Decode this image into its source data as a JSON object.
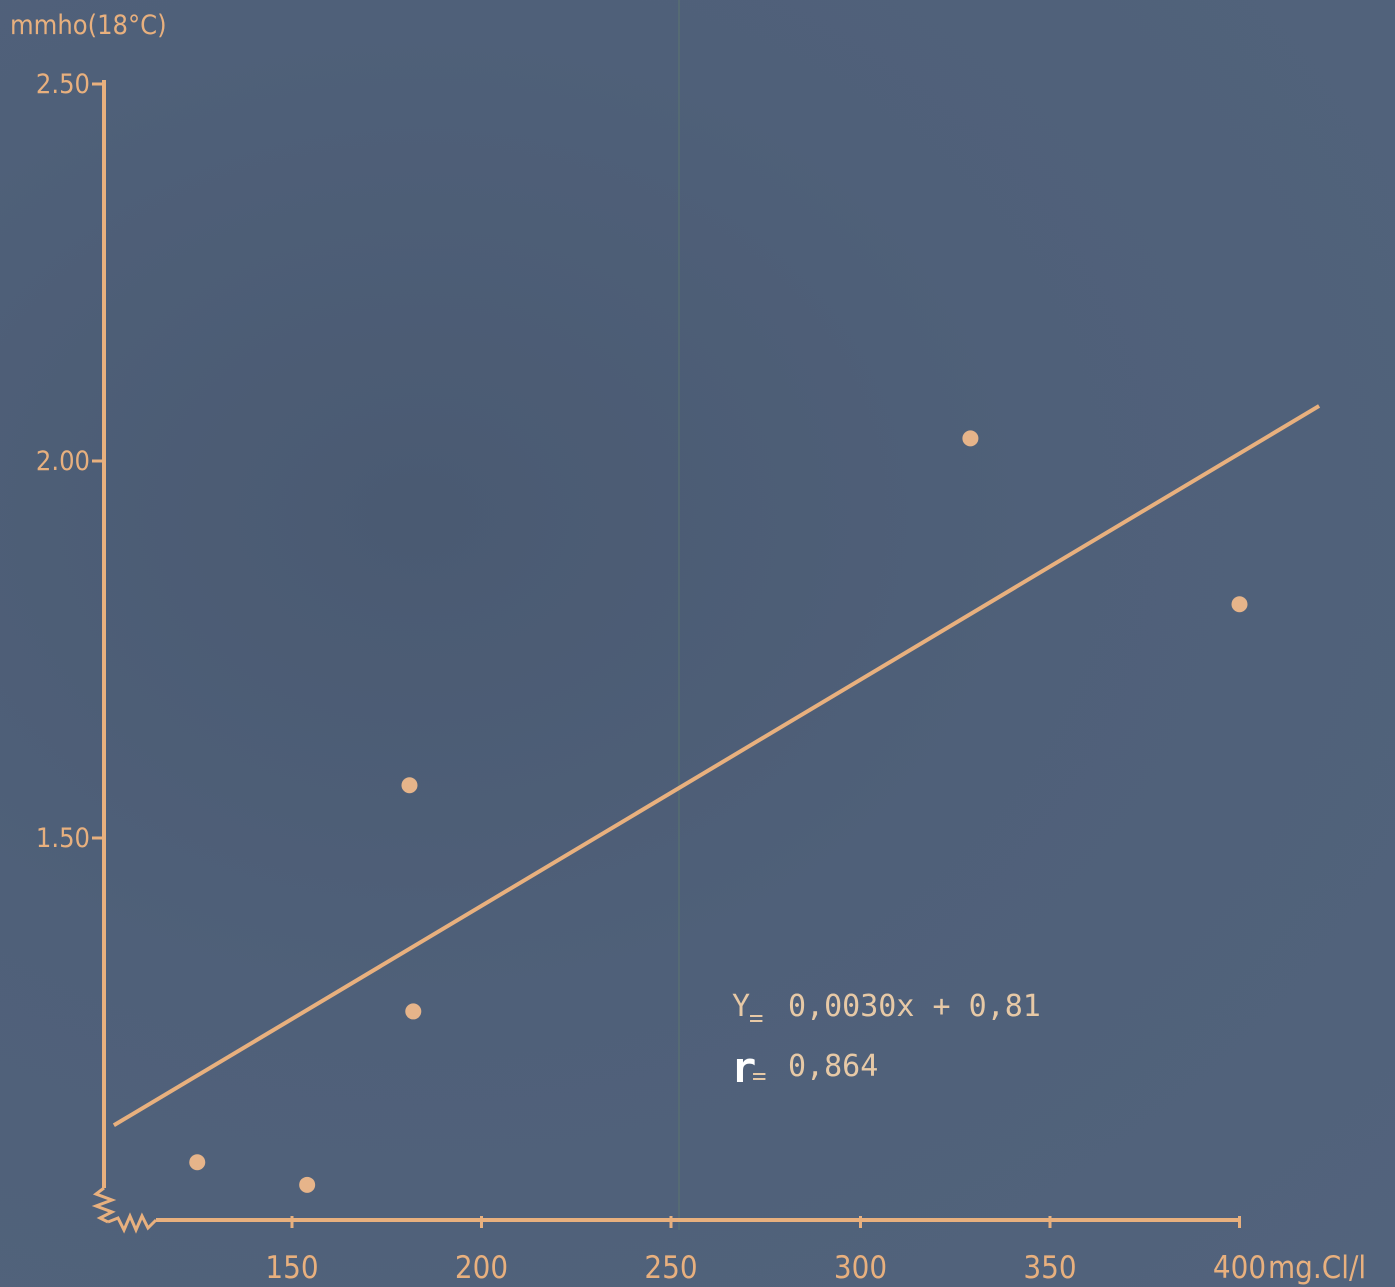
{
  "chart_data": {
    "type": "scatter",
    "ylabel": "mmho(18°C)",
    "xlabel": "mg.Cl/l",
    "x_ticks": [
      150,
      200,
      250,
      300,
      350,
      400
    ],
    "x_tick_labels": [
      "150",
      "200",
      "250",
      "300",
      "350",
      "400"
    ],
    "y_ticks": [
      1.5,
      2.0,
      2.5
    ],
    "y_tick_labels": [
      "1.50",
      "2.00",
      "2.50"
    ],
    "xlim": [
      100,
      400
    ],
    "ylim": [
      1.0,
      2.5
    ],
    "axis_breaks": true,
    "grid": false,
    "points": [
      {
        "x": 125,
        "y": 1.07
      },
      {
        "x": 154,
        "y": 1.04
      },
      {
        "x": 181,
        "y": 1.57
      },
      {
        "x": 182,
        "y": 1.27
      },
      {
        "x": 329,
        "y": 2.03
      },
      {
        "x": 400,
        "y": 1.81
      }
    ],
    "fit_line": {
      "slope": 0.003,
      "intercept": 0.81,
      "x_start": 103,
      "x_end": 421
    },
    "annotations": {
      "equation_prefix": "Y",
      "equation_equals": "=",
      "equation_body": "0,0030x + 0,81",
      "r_prefix": "r",
      "r_equals": "=",
      "r_body": "0,864"
    },
    "colors": {
      "ink": "#e8b07e",
      "background": "#4f6079"
    }
  }
}
